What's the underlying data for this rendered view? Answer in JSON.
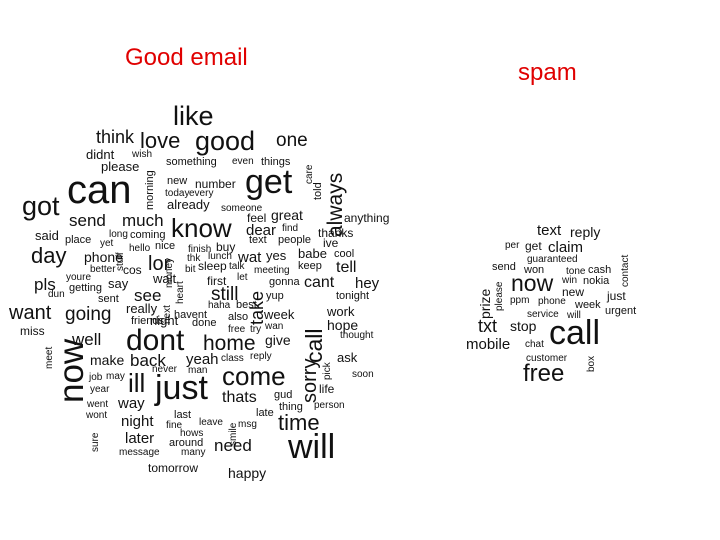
{
  "titles": {
    "good": "Good email",
    "spam": "spam"
  },
  "colors": {
    "title": "#e00000",
    "words": "#111111",
    "background": "#ffffff"
  },
  "good_words": [
    "like",
    "think",
    "love",
    "good",
    "one",
    "didnt",
    "wish",
    "please",
    "something",
    "even",
    "things",
    "care",
    "can",
    "get",
    "morning",
    "new",
    "number",
    "told",
    "today",
    "every",
    "always",
    "got",
    "already",
    "someone",
    "send",
    "much",
    "feel",
    "great",
    "anything",
    "said",
    "place",
    "long",
    "coming",
    "know",
    "dear",
    "find",
    "thanks",
    "yet",
    "hello",
    "nice",
    "text",
    "people",
    "ive",
    "day",
    "phone",
    "stuff",
    "lor",
    "finish",
    "buy",
    "babe",
    "cool",
    "better",
    "cos",
    "thk",
    "lunch",
    "wat",
    "yes",
    "tell",
    "pls",
    "youre",
    "say",
    "money",
    "bit",
    "sleep",
    "talk",
    "meeting",
    "let",
    "keep",
    "dun",
    "getting",
    "wait",
    "heart",
    "first",
    "gonna",
    "hey",
    "sent",
    "see",
    "night",
    "still",
    "cant",
    "tonight",
    "want",
    "going",
    "really",
    "haha",
    "best",
    "take",
    "yup",
    "work",
    "miss",
    "friends",
    "next",
    "havent",
    "done",
    "also",
    "week",
    "hope",
    "wan",
    "well",
    "dont",
    "free",
    "try",
    "give",
    "thought",
    "meet",
    "home",
    "call",
    "ask",
    "now",
    "make",
    "back",
    "yeah",
    "class",
    "reply",
    "job",
    "may",
    "never",
    "man",
    "sorry",
    "pick",
    "soon",
    "year",
    "ill",
    "just",
    "come",
    "life",
    "way",
    "thats",
    "gud",
    "went",
    "thing",
    "person",
    "wont",
    "late",
    "sure",
    "night",
    "last",
    "leave",
    "smile",
    "msg",
    "fine",
    "time",
    "later",
    "around",
    "hows",
    "need",
    "will",
    "message",
    "many",
    "tomorrow",
    "happy"
  ],
  "spam_words": [
    "text",
    "reply",
    "per",
    "get",
    "claim",
    "guaranteed",
    "contact",
    "send",
    "won",
    "tone",
    "cash",
    "prize",
    "now",
    "win",
    "nokia",
    "please",
    "new",
    "ppm",
    "phone",
    "just",
    "week",
    "service",
    "will",
    "urgent",
    "txt",
    "stop",
    "mobile",
    "chat",
    "call",
    "customer",
    "box",
    "free"
  ]
}
